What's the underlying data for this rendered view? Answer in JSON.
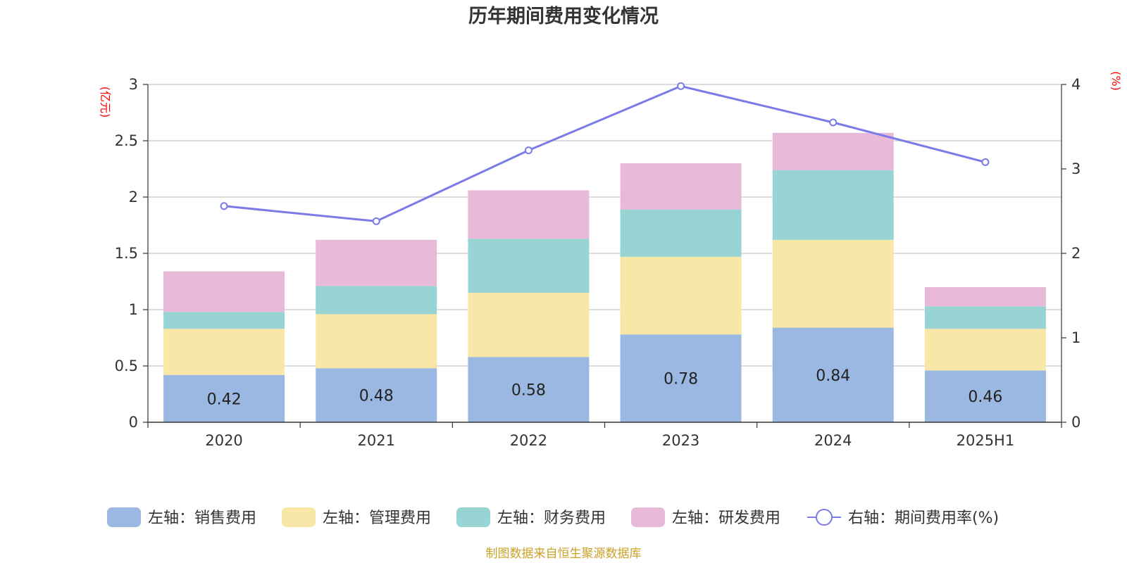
{
  "chart_data": {
    "type": "bar",
    "stacked": true,
    "title": "历年期间费用变化情况",
    "categories": [
      "2020",
      "2021",
      "2022",
      "2023",
      "2024",
      "2025H1"
    ],
    "left_axis": {
      "unit": "(亿元)",
      "ylim": [
        0,
        3
      ],
      "ticks": [
        "0",
        "0.5",
        "1",
        "1.5",
        "2",
        "2.5",
        "3"
      ],
      "tick_values": [
        0,
        0.5,
        1,
        1.5,
        2,
        2.5,
        3
      ]
    },
    "right_axis": {
      "unit": "(%)",
      "ylim": [
        0,
        4
      ],
      "ticks": [
        "0",
        "1",
        "2",
        "3",
        "4"
      ],
      "tick_values": [
        0,
        1,
        2,
        3,
        4
      ]
    },
    "series": [
      {
        "name": "左轴：销售费用",
        "type": "bar",
        "color": "#9bb8e2",
        "values": [
          0.42,
          0.48,
          0.58,
          0.78,
          0.84,
          0.46
        ],
        "data_labels": [
          "0.42",
          "0.48",
          "0.58",
          "0.78",
          "0.84",
          "0.46"
        ]
      },
      {
        "name": "左轴：管理费用",
        "type": "bar",
        "color": "#f8e7a6",
        "values": [
          0.41,
          0.48,
          0.57,
          0.69,
          0.78,
          0.37
        ]
      },
      {
        "name": "左轴：财务费用",
        "type": "bar",
        "color": "#98d4d4",
        "values": [
          0.15,
          0.25,
          0.48,
          0.42,
          0.62,
          0.2
        ]
      },
      {
        "name": "左轴：研发费用",
        "type": "bar",
        "color": "#e8b9d9",
        "values": [
          0.36,
          0.41,
          0.43,
          0.41,
          0.33,
          0.17
        ]
      },
      {
        "name": "右轴：期间费用率(%)",
        "type": "line",
        "axis": "right",
        "color": "#7b7be8",
        "values": [
          2.56,
          2.38,
          3.22,
          3.98,
          3.55,
          3.08
        ]
      }
    ],
    "legend_position": "bottom",
    "grid": true
  },
  "source_text": "制图数据来自恒生聚源数据库"
}
